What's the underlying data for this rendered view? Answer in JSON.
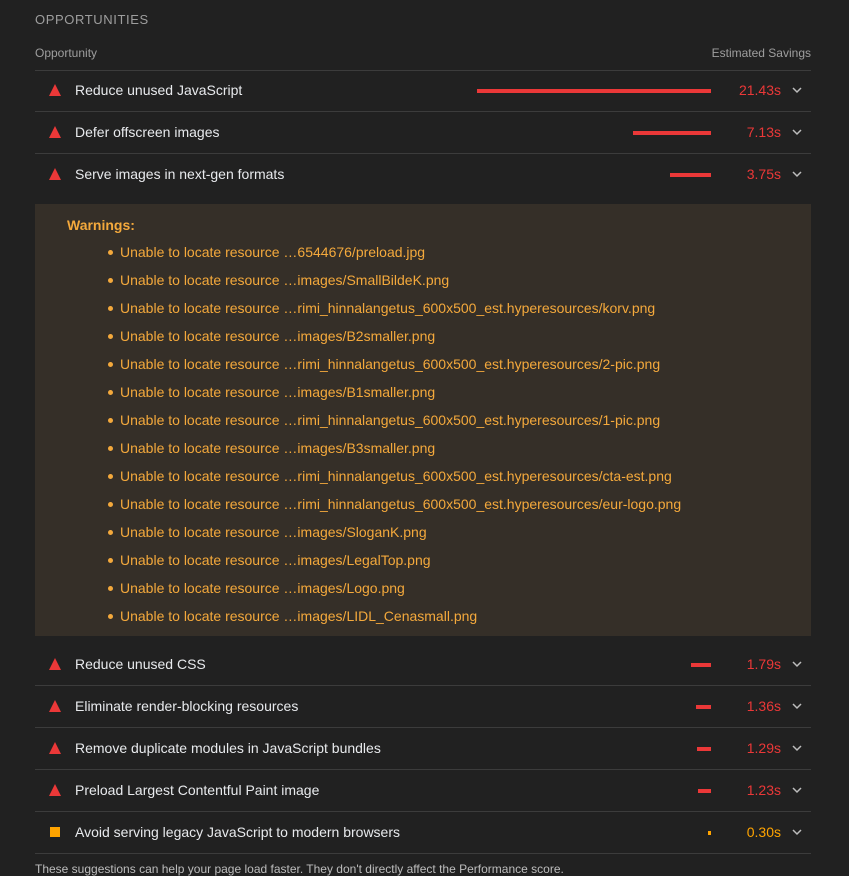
{
  "section": {
    "title": "OPPORTUNITIES"
  },
  "table_header": {
    "opportunity": "Opportunity",
    "savings": "Estimated Savings"
  },
  "colors": {
    "fail": "#eb3838",
    "average": "#ffa400",
    "warning_text": "#f4a93c",
    "background": "#212121",
    "warning_panel": "#352f28"
  },
  "audits": [
    {
      "title": "Reduce unused JavaScript",
      "savings": "21.43s",
      "severity": "fail",
      "icon": "red-triangle-icon",
      "bar_fraction": 1.0
    },
    {
      "title": "Defer offscreen images",
      "savings": "7.13s",
      "severity": "fail",
      "icon": "red-triangle-icon",
      "bar_fraction": 0.333
    },
    {
      "title": "Serve images in next-gen formats",
      "savings": "3.75s",
      "severity": "fail",
      "icon": "red-triangle-icon",
      "bar_fraction": 0.175,
      "expanded": true
    },
    {
      "title": "Reduce unused CSS",
      "savings": "1.79s",
      "severity": "fail",
      "icon": "red-triangle-icon",
      "bar_fraction": 0.084
    },
    {
      "title": "Eliminate render-blocking resources",
      "savings": "1.36s",
      "severity": "fail",
      "icon": "red-triangle-icon",
      "bar_fraction": 0.063
    },
    {
      "title": "Remove duplicate modules in JavaScript bundles",
      "savings": "1.29s",
      "severity": "fail",
      "icon": "red-triangle-icon",
      "bar_fraction": 0.06
    },
    {
      "title": "Preload Largest Contentful Paint image",
      "savings": "1.23s",
      "severity": "fail",
      "icon": "red-triangle-icon",
      "bar_fraction": 0.057
    },
    {
      "title": "Avoid serving legacy JavaScript to modern browsers",
      "savings": "0.30s",
      "severity": "average",
      "icon": "orange-square-icon",
      "bar_fraction": 0.014
    }
  ],
  "warnings": {
    "title": "Warnings:",
    "items": [
      "Unable to locate resource …6544676/preload.jpg",
      "Unable to locate resource …images/SmallBildeK.png",
      "Unable to locate resource …rimi_hinnalangetus_600x500_est.hyperesources/korv.png",
      "Unable to locate resource …images/B2smaller.png",
      "Unable to locate resource …rimi_hinnalangetus_600x500_est.hyperesources/2-pic.png",
      "Unable to locate resource …images/B1smaller.png",
      "Unable to locate resource …rimi_hinnalangetus_600x500_est.hyperesources/1-pic.png",
      "Unable to locate resource …images/B3smaller.png",
      "Unable to locate resource …rimi_hinnalangetus_600x500_est.hyperesources/cta-est.png",
      "Unable to locate resource …rimi_hinnalangetus_600x500_est.hyperesources/eur-logo.png",
      "Unable to locate resource …images/SloganK.png",
      "Unable to locate resource …images/LegalTop.png",
      "Unable to locate resource …images/Logo.png",
      "Unable to locate resource …images/LIDL_Cenasmall.png"
    ]
  },
  "footer": {
    "text": "These suggestions can help your page load faster. They don't directly affect the Performance score."
  }
}
